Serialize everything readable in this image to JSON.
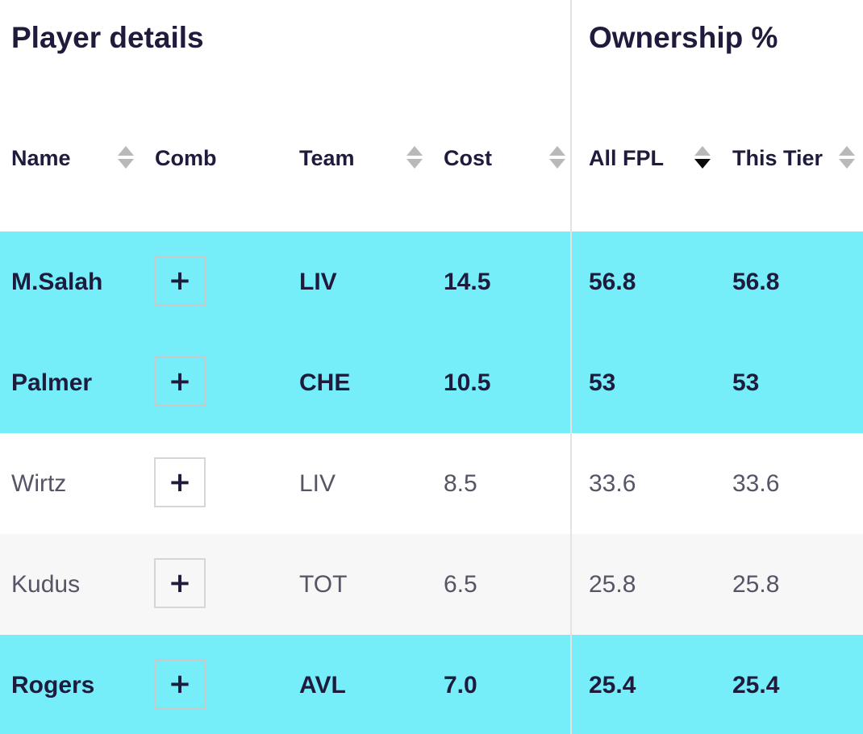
{
  "groups": {
    "player_details": "Player details",
    "ownership": "Ownership %"
  },
  "columns": {
    "name": "Name",
    "comb": "Comb",
    "team": "Team",
    "cost": "Cost",
    "all_fpl": "All FPL",
    "this_tier": "This Tier"
  },
  "sort_state": {
    "active_column": "All FPL",
    "direction": "descending"
  },
  "add_icon": "plus-icon",
  "add_symbol": "+",
  "colors": {
    "highlight": "#76eefa",
    "alt_row": "#f7f7f7",
    "text_dark": "#1e1b3c",
    "text_muted": "#555566"
  },
  "rows": [
    {
      "name": "M.Salah",
      "team": "LIV",
      "cost": "14.5",
      "all_fpl": "56.8",
      "this_tier": "56.8",
      "style": "hl"
    },
    {
      "name": "Palmer",
      "team": "CHE",
      "cost": "10.5",
      "all_fpl": "53",
      "this_tier": "53",
      "style": "hl"
    },
    {
      "name": "Wirtz",
      "team": "LIV",
      "cost": "8.5",
      "all_fpl": "33.6",
      "this_tier": "33.6",
      "style": "plain"
    },
    {
      "name": "Kudus",
      "team": "TOT",
      "cost": "6.5",
      "all_fpl": "25.8",
      "this_tier": "25.8",
      "style": "alt"
    },
    {
      "name": "Rogers",
      "team": "AVL",
      "cost": "7.0",
      "all_fpl": "25.4",
      "this_tier": "25.4",
      "style": "hl"
    }
  ]
}
